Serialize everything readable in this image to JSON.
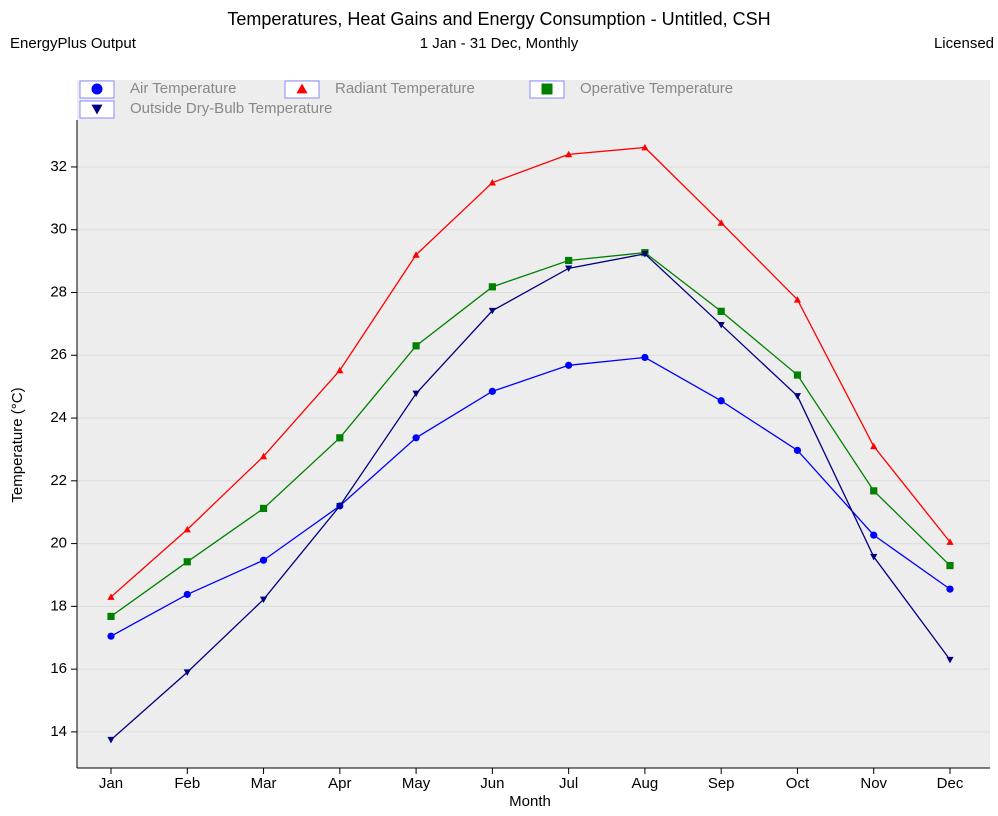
{
  "chart_data": {
    "type": "line",
    "title": "Temperatures, Heat Gains and Energy Consumption - Untitled, CSH",
    "subtitle": "1 Jan - 31 Dec, Monthly",
    "source_label": "EnergyPlus Output",
    "license_label": "Licensed",
    "x_label": "Month",
    "y_label": "Temperature (°C)",
    "categories": [
      "Jan",
      "Feb",
      "Mar",
      "Apr",
      "May",
      "Jun",
      "Jul",
      "Aug",
      "Sep",
      "Oct",
      "Nov",
      "Dec"
    ],
    "series": [
      {
        "name": "Air Temperature",
        "color": "#0000ff",
        "marker": "circle",
        "values": [
          17.05,
          18.38,
          19.47,
          21.2,
          23.37,
          24.85,
          25.68,
          25.93,
          24.55,
          22.97,
          20.27,
          18.55
        ]
      },
      {
        "name": "Radiant Temperature",
        "color": "#ff0000",
        "marker": "triangle",
        "values": [
          18.3,
          20.45,
          22.78,
          25.52,
          29.2,
          31.5,
          32.4,
          32.62,
          30.22,
          27.77,
          23.1,
          20.05
        ]
      },
      {
        "name": "Operative Temperature",
        "color": "#008000",
        "marker": "square",
        "values": [
          17.68,
          19.42,
          21.12,
          23.37,
          26.3,
          28.18,
          29.02,
          29.27,
          27.4,
          25.37,
          21.68,
          19.3
        ]
      },
      {
        "name": "Outside Dry-Bulb Temperature",
        "color": "#000080",
        "marker": "triangle-down",
        "values": [
          13.75,
          15.9,
          18.22,
          21.2,
          24.78,
          27.42,
          28.77,
          29.23,
          26.97,
          24.7,
          19.58,
          16.3
        ]
      }
    ],
    "ylim": [
      12.85,
      34.77
    ],
    "yticks": [
      14,
      16,
      18,
      20,
      22,
      24,
      26,
      28,
      30,
      32
    ],
    "grid": true
  }
}
